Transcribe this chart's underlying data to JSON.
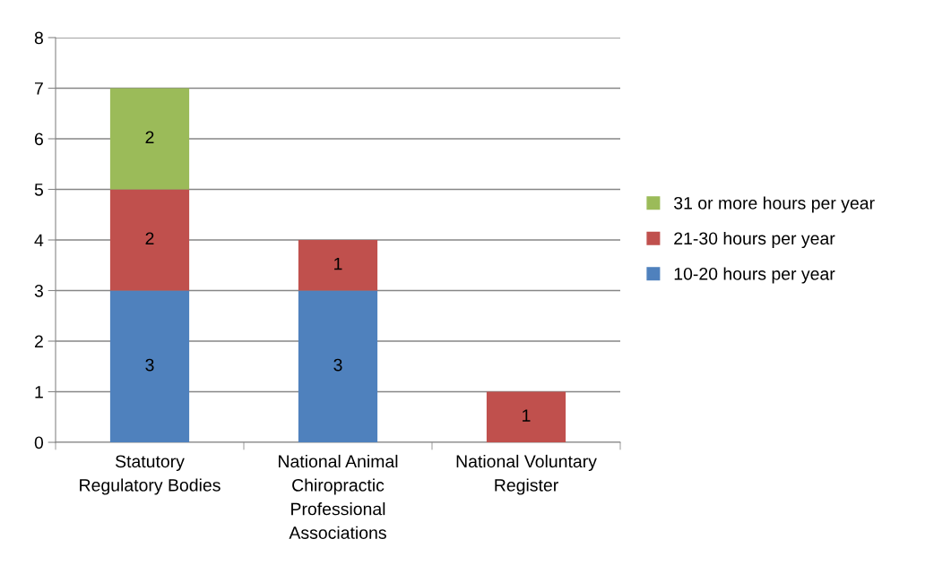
{
  "chart_data": {
    "type": "bar",
    "stacked": true,
    "categories": [
      "Statutory\nRegulatory Bodies",
      "National Animal\nChiropractic\nProfessional\nAssociations",
      "National Voluntary\nRegister"
    ],
    "series": [
      {
        "name": "10-20 hours per year",
        "color": "#4f81bd",
        "values": [
          3,
          3,
          null
        ],
        "value_labels": [
          "3",
          "3",
          null
        ]
      },
      {
        "name": "21-30 hours per year",
        "color": "#c0504d",
        "values": [
          2,
          1,
          1
        ],
        "value_labels": [
          "2",
          "1",
          "1"
        ]
      },
      {
        "name": "31 or more hours per year",
        "color": "#9bbb59",
        "values": [
          2,
          null,
          null
        ],
        "value_labels": [
          "2",
          null,
          null
        ]
      }
    ],
    "ylim": [
      0,
      8
    ],
    "yticks": [
      0,
      1,
      2,
      3,
      4,
      5,
      6,
      7,
      8
    ],
    "grid": "y",
    "legend": "right"
  }
}
